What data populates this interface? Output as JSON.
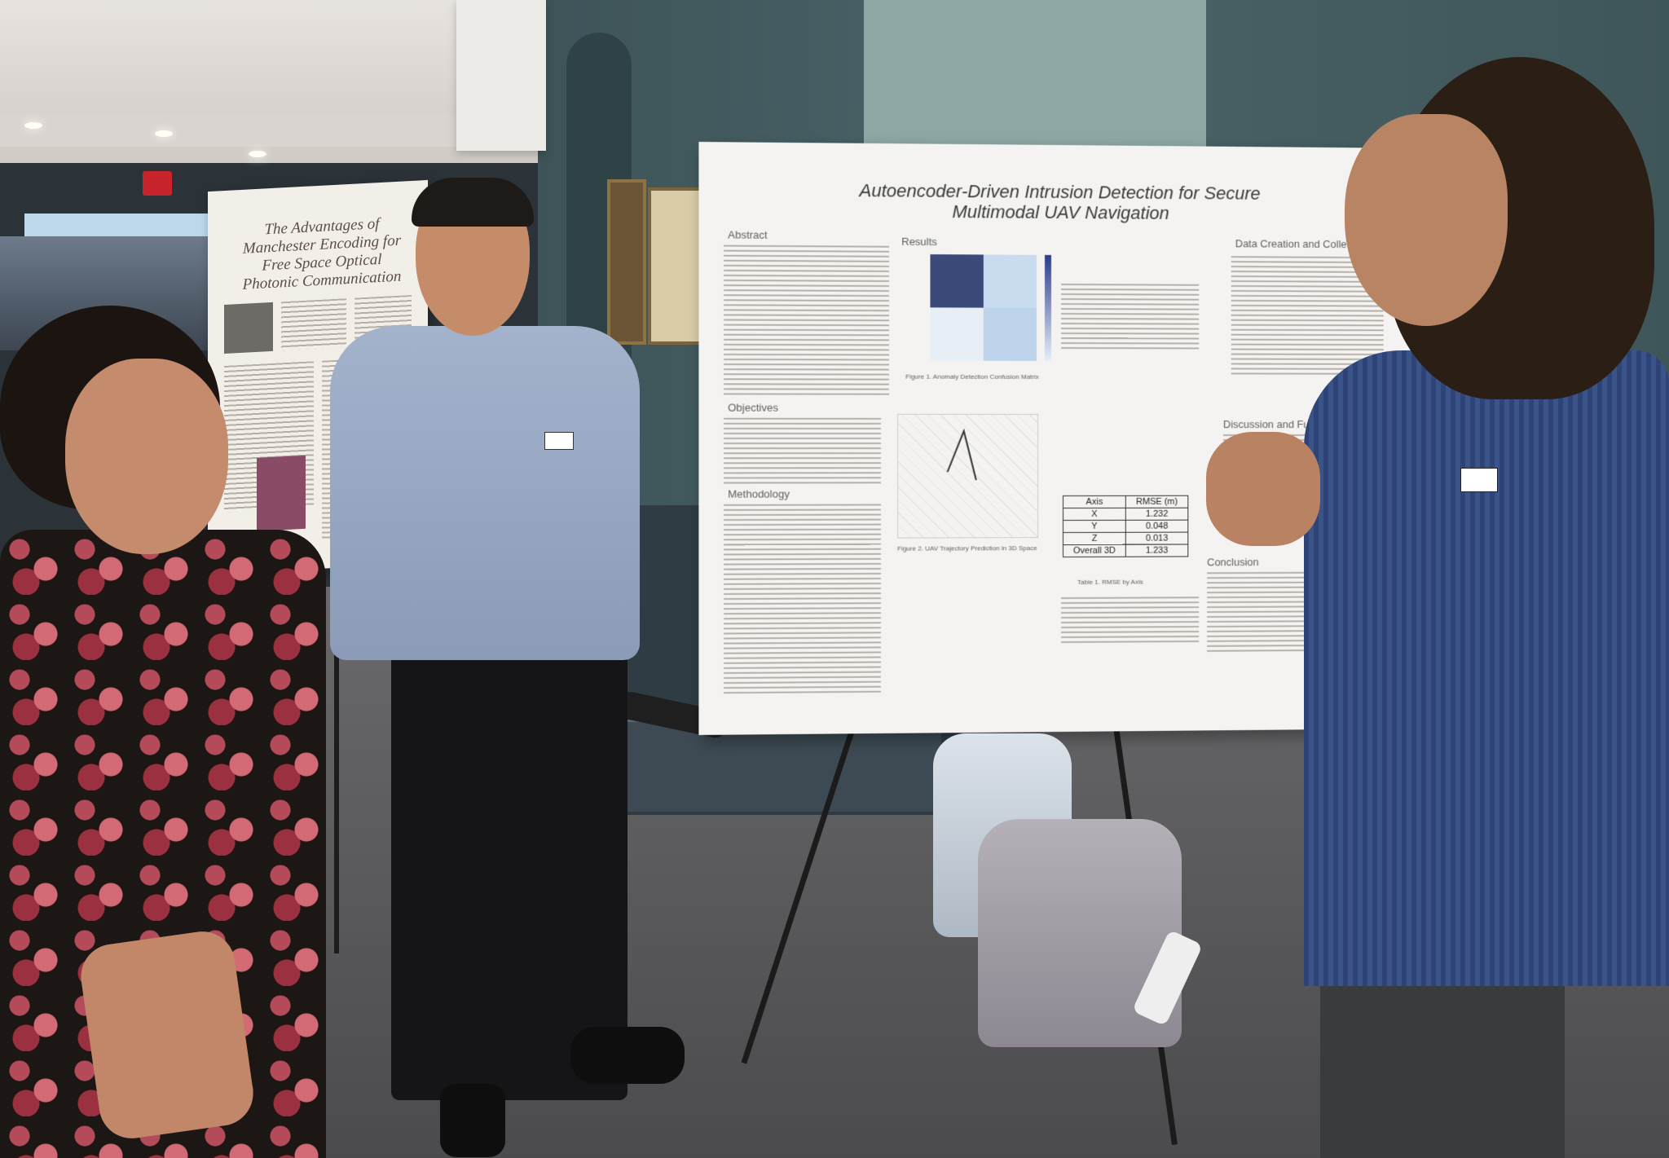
{
  "poster_left": {
    "title": "The Advantages of Manchester Encoding for Free Space Optical Photonic Communication"
  },
  "poster_main": {
    "title_line1": "Autoencoder-Driven Intrusion Detection for Secure",
    "title_line2": "Multimodal UAV Navigation",
    "section_abstract": "Abstract",
    "section_results": "Results",
    "section_objectives": "Objectives",
    "section_methodology": "Methodology",
    "section_data": "Data Creation and Colle",
    "section_discussion": "Discussion and Future Wo",
    "section_conclusion": "Conclusion",
    "figure1_caption": "Figure 1. Anomaly Detection Confusion Matrix",
    "figure2_caption": "Figure 2. UAV Trajectory Prediction in 3D Space",
    "table1_caption": "Table 1. RMSE by Axis",
    "rmse_table": {
      "header": [
        "Axis",
        "RMSE (m)"
      ],
      "rows": [
        [
          "X",
          "1.232"
        ],
        [
          "Y",
          "0.048"
        ],
        [
          "Z",
          "0.013"
        ],
        [
          "Overall 3D",
          "1.233"
        ]
      ]
    }
  },
  "colors": {
    "wall_teal": "#4a6468",
    "poster_paper": "#f4f3f1",
    "shirt_navy": "#334a7e",
    "exit_sign": "#c8242b"
  }
}
